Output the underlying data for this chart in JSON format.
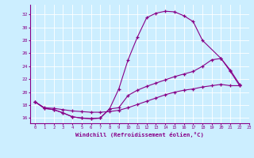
{
  "curve1_x": [
    0,
    1,
    2,
    3,
    4,
    5,
    6,
    7,
    8,
    9,
    10,
    11,
    12,
    13,
    14,
    15,
    16,
    17,
    18,
    20,
    21,
    22
  ],
  "curve1_y": [
    18.5,
    17.5,
    17.3,
    16.8,
    16.2,
    16.0,
    15.9,
    16.0,
    17.4,
    20.5,
    25.0,
    28.5,
    31.5,
    32.2,
    32.5,
    32.4,
    31.8,
    30.9,
    28.0,
    25.2,
    23.4,
    21.2
  ],
  "curve2_x": [
    0,
    1,
    2,
    3,
    4,
    5,
    6,
    7,
    8,
    9,
    10,
    11,
    12,
    13,
    14,
    15,
    16,
    17,
    18,
    19,
    20,
    21,
    22
  ],
  "curve2_y": [
    18.5,
    17.5,
    17.3,
    16.8,
    16.2,
    16.0,
    15.9,
    16.0,
    17.4,
    17.6,
    19.5,
    20.3,
    20.9,
    21.4,
    21.9,
    22.4,
    22.8,
    23.2,
    24.0,
    25.0,
    25.2,
    23.2,
    21.0
  ],
  "curve3_x": [
    0,
    1,
    2,
    3,
    4,
    5,
    6,
    7,
    8,
    9,
    10,
    11,
    12,
    13,
    14,
    15,
    16,
    17,
    18,
    19,
    20,
    21,
    22
  ],
  "curve3_y": [
    18.5,
    17.6,
    17.5,
    17.3,
    17.1,
    17.0,
    16.9,
    16.9,
    17.0,
    17.2,
    17.6,
    18.1,
    18.6,
    19.1,
    19.6,
    20.0,
    20.3,
    20.5,
    20.8,
    21.0,
    21.2,
    21.0,
    21.0
  ],
  "xlim": [
    -0.5,
    23
  ],
  "ylim": [
    15.2,
    33.5
  ],
  "yticks": [
    16,
    18,
    20,
    22,
    24,
    26,
    28,
    30,
    32
  ],
  "xticks": [
    0,
    1,
    2,
    3,
    4,
    5,
    6,
    7,
    8,
    9,
    10,
    11,
    12,
    13,
    14,
    15,
    16,
    17,
    18,
    19,
    20,
    21,
    22,
    23
  ],
  "xlabel": "Windchill (Refroidissement éolien,°C)",
  "line_color": "#880088",
  "bg_color": "#cceeff",
  "grid_color": "#ffffff"
}
